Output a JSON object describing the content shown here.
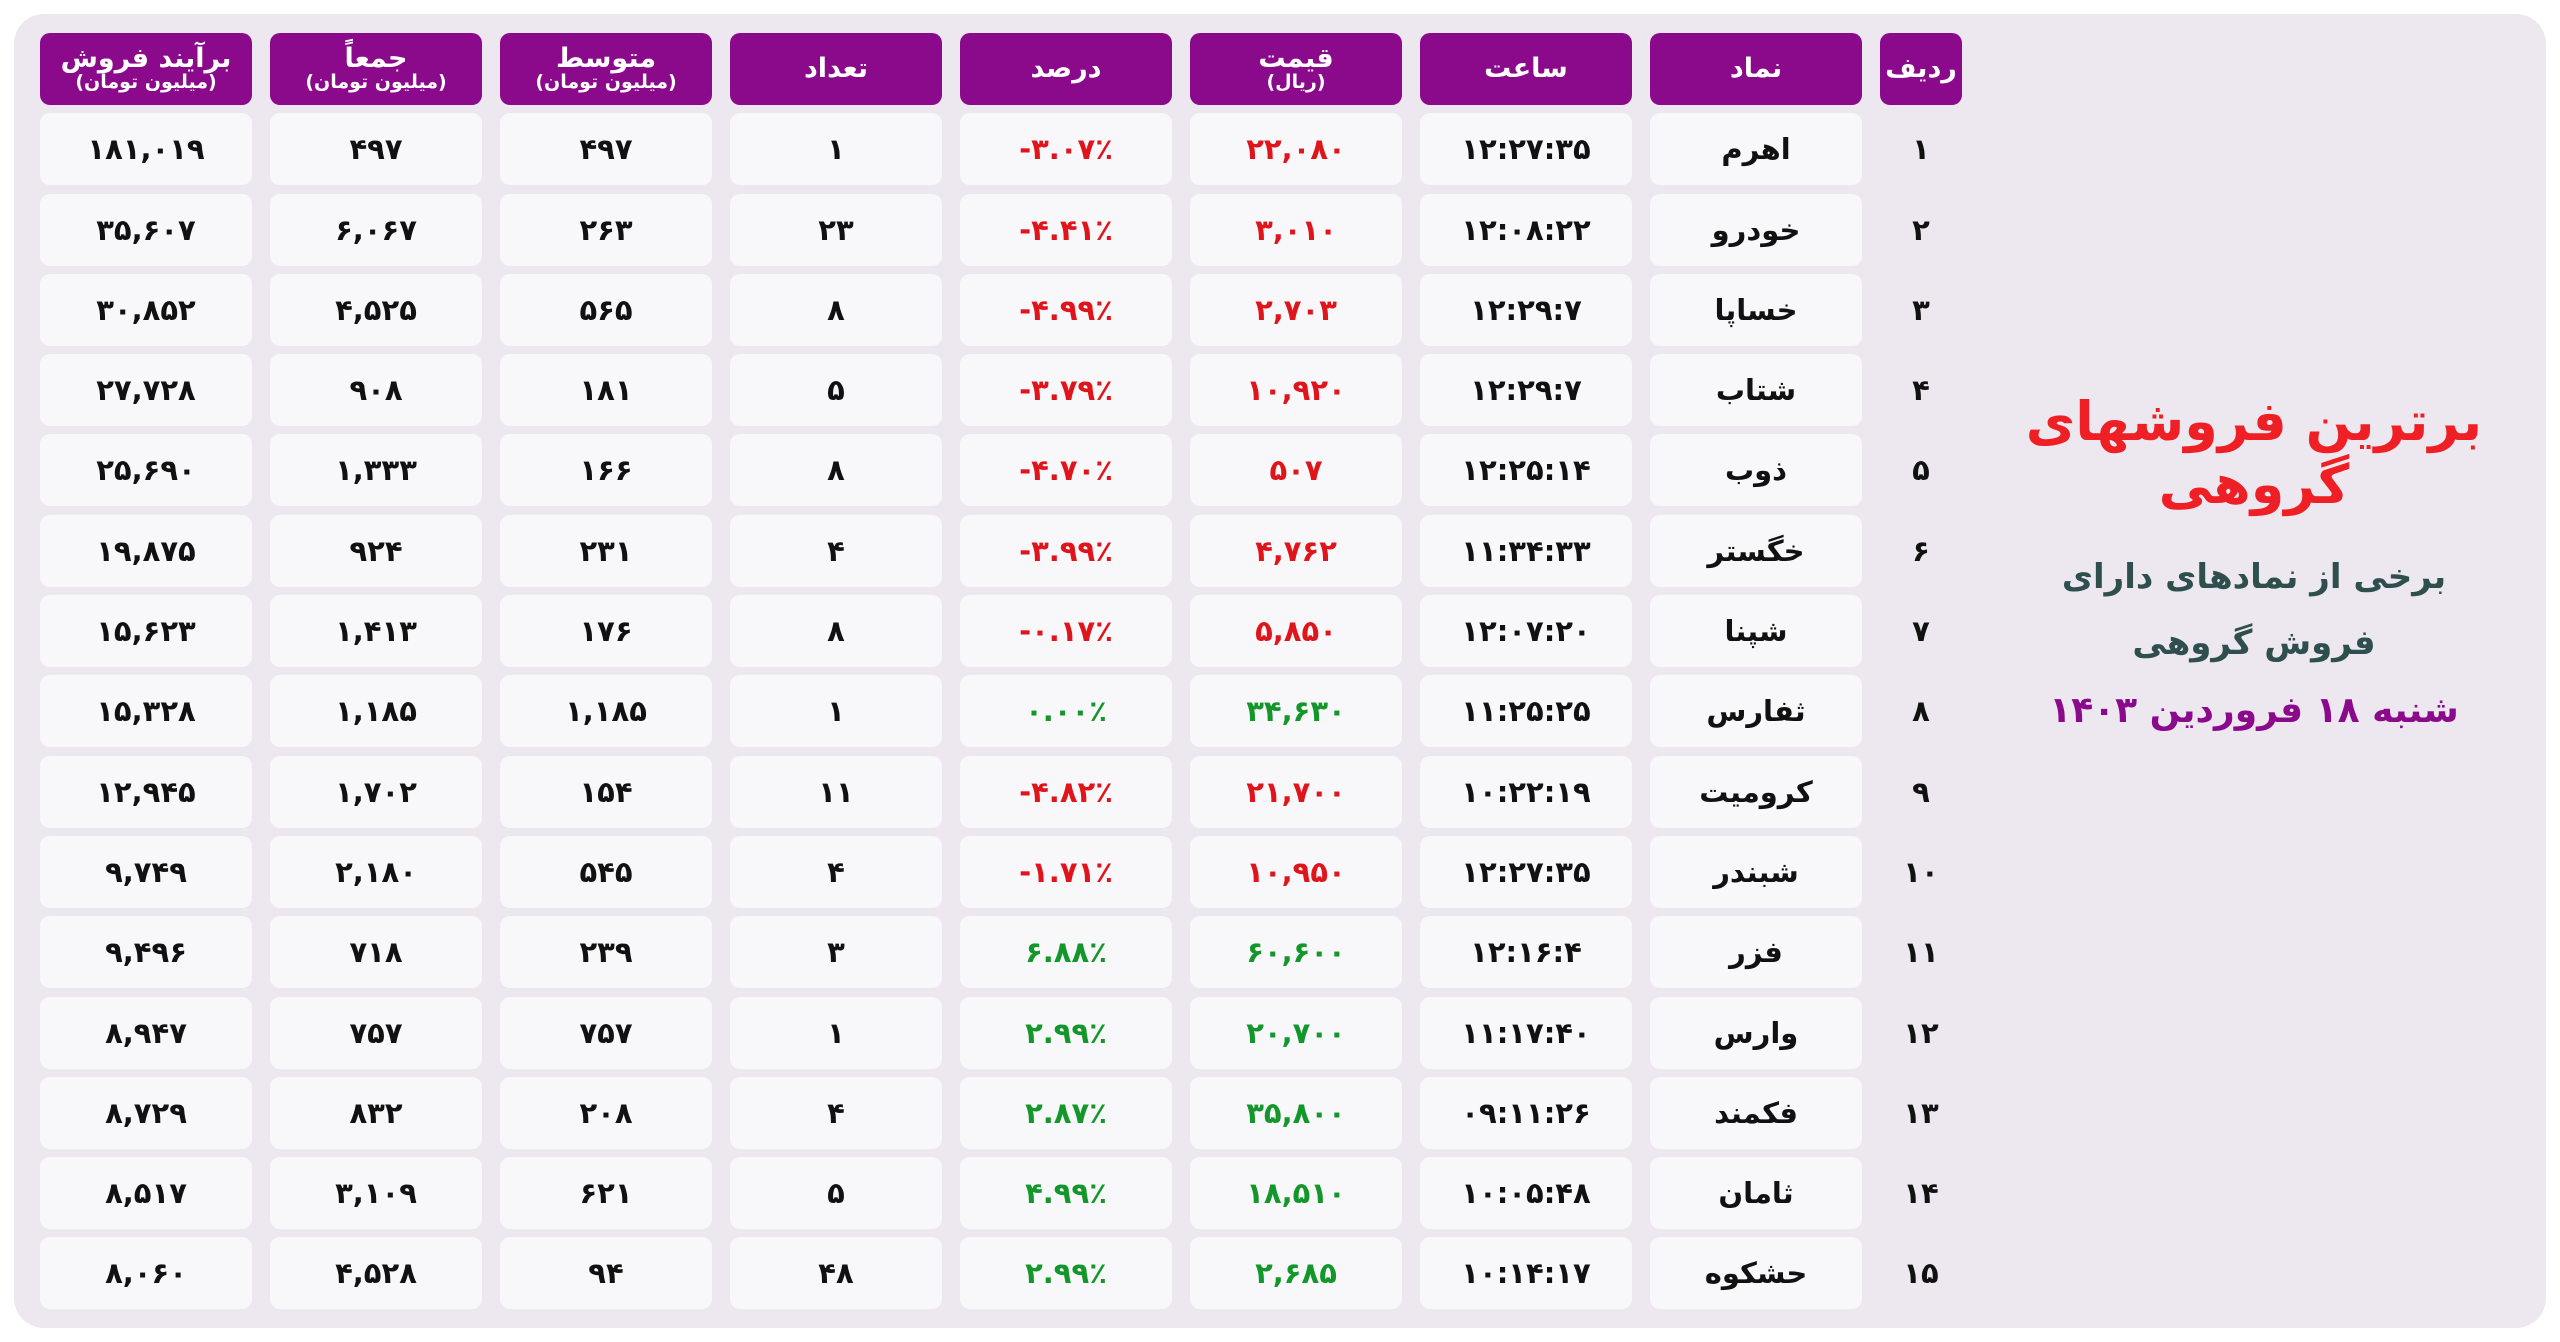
{
  "table": {
    "columns": [
      {
        "title": "ردیف"
      },
      {
        "title": "نماد"
      },
      {
        "title": "ساعت"
      },
      {
        "title": "قیمت",
        "sub": "(ریال)"
      },
      {
        "title": "درصد"
      },
      {
        "title": "تعداد"
      },
      {
        "title": "متوسط",
        "sub": "(میلیون تومان)"
      },
      {
        "title": "جمعاً",
        "sub": "(میلیون تومان)"
      },
      {
        "title": "برآیند فروش",
        "sub": "(میلیون تومان)"
      }
    ],
    "rows": [
      [
        "۱",
        "اهرم",
        "۱۲:۲۷:۳۵",
        "۲۲,۰۸۰",
        "-۳.۰۷٪",
        "۱",
        "۴۹۷",
        "۴۹۷",
        "۱۸۱,۰۱۹"
      ],
      [
        "۲",
        "خودرو",
        "۱۲:۰۸:۲۲",
        "۳,۰۱۰",
        "-۴.۴۱٪",
        "۲۳",
        "۲۶۳",
        "۶,۰۶۷",
        "۳۵,۶۰۷"
      ],
      [
        "۳",
        "خساپا",
        "۱۲:۲۹:۷",
        "۲,۷۰۳",
        "-۴.۹۹٪",
        "۸",
        "۵۶۵",
        "۴,۵۲۵",
        "۳۰,۸۵۲"
      ],
      [
        "۴",
        "شتاب",
        "۱۲:۲۹:۷",
        "۱۰,۹۲۰",
        "-۳.۷۹٪",
        "۵",
        "۱۸۱",
        "۹۰۸",
        "۲۷,۷۲۸"
      ],
      [
        "۵",
        "ذوب",
        "۱۲:۲۵:۱۴",
        "۵۰۷",
        "-۴.۷۰٪",
        "۸",
        "۱۶۶",
        "۱,۳۳۳",
        "۲۵,۶۹۰"
      ],
      [
        "۶",
        "خگستر",
        "۱۱:۳۴:۳۳",
        "۴,۷۶۲",
        "-۳.۹۹٪",
        "۴",
        "۲۳۱",
        "۹۲۴",
        "۱۹,۸۷۵"
      ],
      [
        "۷",
        "شپنا",
        "۱۲:۰۷:۲۰",
        "۵,۸۵۰",
        "-۰.۱۷٪",
        "۸",
        "۱۷۶",
        "۱,۴۱۳",
        "۱۵,۶۲۳"
      ],
      [
        "۸",
        "ثفارس",
        "۱۱:۲۵:۲۵",
        "۳۴,۶۳۰",
        "۰.۰۰٪",
        "۱",
        "۱,۱۸۵",
        "۱,۱۸۵",
        "۱۵,۳۲۸"
      ],
      [
        "۹",
        "کرومیت",
        "۱۰:۲۲:۱۹",
        "۲۱,۷۰۰",
        "-۴.۸۲٪",
        "۱۱",
        "۱۵۴",
        "۱,۷۰۲",
        "۱۲,۹۴۵"
      ],
      [
        "۱۰",
        "شبندر",
        "۱۲:۲۷:۳۵",
        "۱۰,۹۵۰",
        "-۱.۷۱٪",
        "۴",
        "۵۴۵",
        "۲,۱۸۰",
        "۹,۷۴۹"
      ],
      [
        "۱۱",
        "فزر",
        "۱۲:۱۶:۴",
        "۶۰,۶۰۰",
        "۶.۸۸٪",
        "۳",
        "۲۳۹",
        "۷۱۸",
        "۹,۴۹۶"
      ],
      [
        "۱۲",
        "وارس",
        "۱۱:۱۷:۴۰",
        "۲۰,۷۰۰",
        "۲.۹۹٪",
        "۱",
        "۷۵۷",
        "۷۵۷",
        "۸,۹۴۷"
      ],
      [
        "۱۳",
        "فکمند",
        "۰۹:۱۱:۲۶",
        "۳۵,۸۰۰",
        "۲.۸۷٪",
        "۴",
        "۲۰۸",
        "۸۳۲",
        "۸,۷۲۹"
      ],
      [
        "۱۴",
        "ثامان",
        "۱۰:۰۵:۴۸",
        "۱۸,۵۱۰",
        "۴.۹۹٪",
        "۵",
        "۶۲۱",
        "۳,۱۰۹",
        "۸,۵۱۷"
      ],
      [
        "۱۵",
        "حشکوه",
        "۱۰:۱۴:۱۷",
        "۲,۶۸۵",
        "۲.۹۹٪",
        "۴۸",
        "۹۴",
        "۴,۵۲۸",
        "۸,۰۶۰"
      ]
    ]
  },
  "side": {
    "title": "برترین فروشهای گروهی",
    "subtitle": [
      "برخی از نمادهای دارای",
      "فروش گروهی"
    ],
    "date": "شنبه ۱۸ فروردین ۱۴۰۳"
  }
}
